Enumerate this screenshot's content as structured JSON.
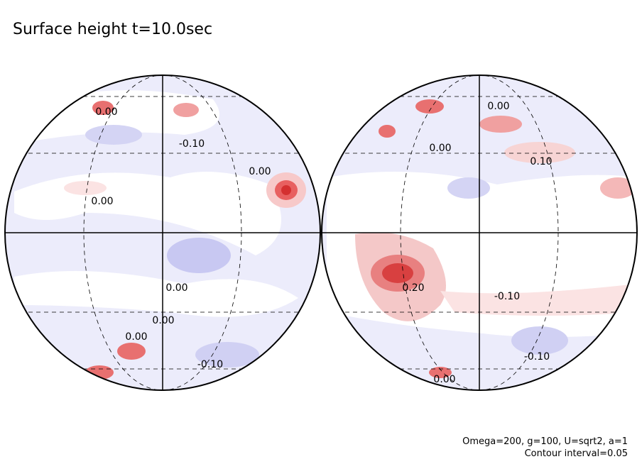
{
  "title": "Surface height t=10.0sec",
  "globes": [
    {
      "labels": [
        "0.00",
        "-0.10",
        "0.00",
        "0.00",
        "0.00",
        "0.00",
        "0.00",
        "-0.10"
      ]
    },
    {
      "labels": [
        "0.00",
        "0.00",
        "0.10",
        "0.20",
        "-0.10",
        "-0.10",
        "0.00"
      ]
    }
  ],
  "footer": [
    "Omega=200, g=100, U=sqrt2, a=1",
    "Contour interval=0.05"
  ]
}
